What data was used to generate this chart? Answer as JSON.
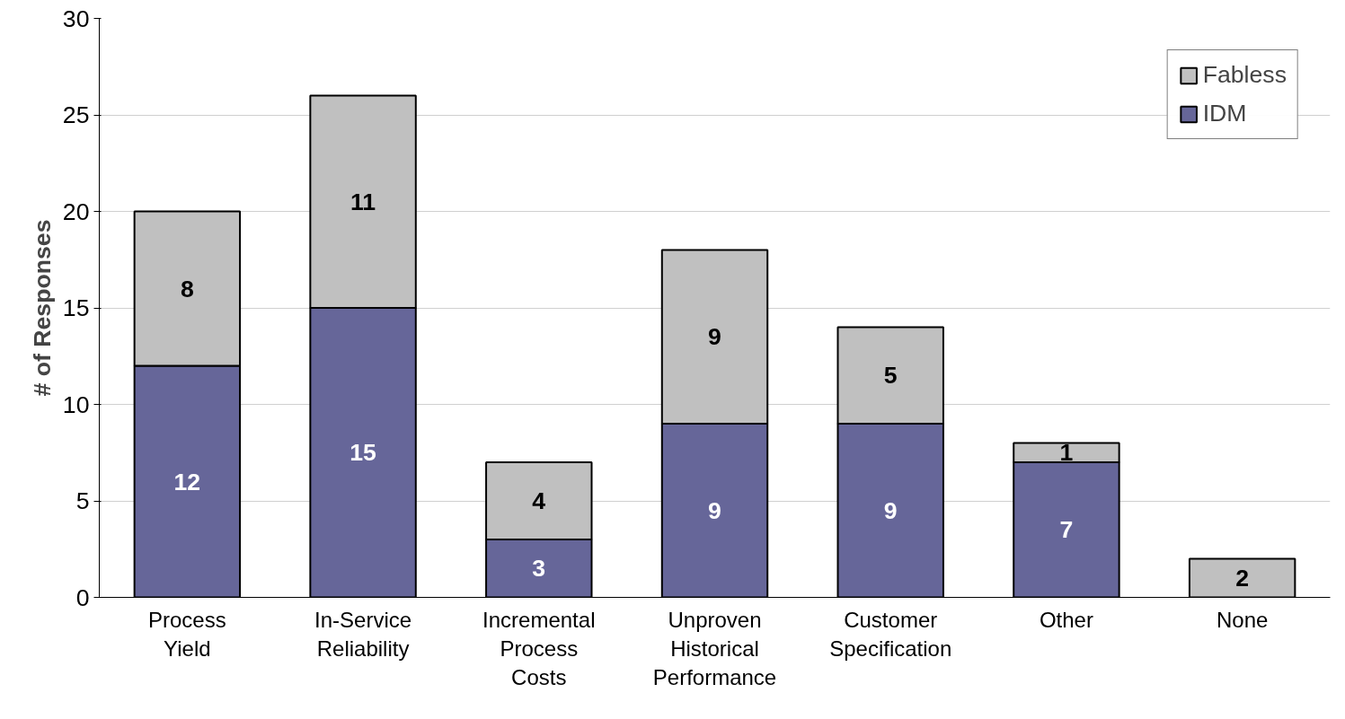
{
  "chart_data": {
    "type": "bar",
    "stacked": true,
    "ylabel": "# of Responses",
    "categories": [
      "Process\nYield",
      "In-Service\nReliability",
      "Incremental\nProcess\nCosts",
      "Unproven\nHistorical\nPerformance",
      "Customer\nSpecification",
      "Other",
      "None"
    ],
    "series": [
      {
        "name": "IDM",
        "color": "#666699",
        "values": [
          12,
          15,
          3,
          9,
          9,
          7,
          0
        ],
        "value_labels": [
          "12",
          "15",
          "3",
          "9",
          "9",
          "7",
          null
        ]
      },
      {
        "name": "Fabless",
        "color": "#c0c0c0",
        "values": [
          8,
          11,
          4,
          9,
          5,
          1,
          2
        ],
        "value_labels": [
          "8",
          "11",
          "4",
          "9",
          "5",
          "1",
          "2"
        ]
      }
    ],
    "ylim": [
      0,
      30
    ],
    "yticks": [
      0,
      5,
      10,
      15,
      20,
      25,
      30
    ],
    "grid": "y",
    "legend": "top right"
  }
}
